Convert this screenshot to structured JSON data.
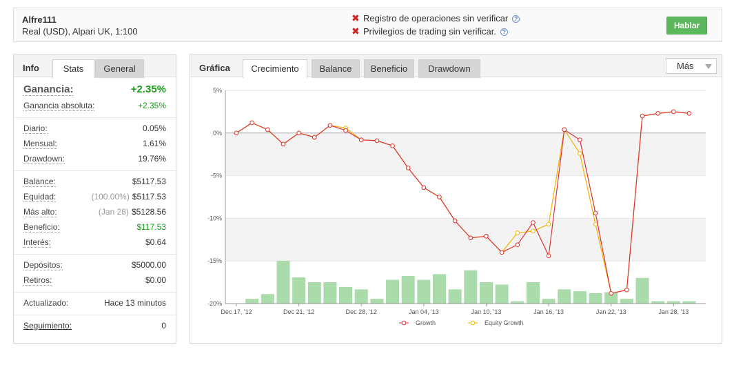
{
  "header": {
    "account_name": "Alfre111",
    "account_sub": "Real (USD), Alpari UK, 1:100",
    "warnings": [
      "Registro de operaciones sin verificar",
      "Privilegios de trading sin verificar."
    ],
    "help_glyph": "?",
    "talk_button": "Hablar"
  },
  "left_panel": {
    "title": "Info",
    "tabs": [
      "Stats",
      "General"
    ],
    "active_tab": "Stats",
    "gain": {
      "label": "Ganancia:",
      "value": "+2.35%"
    },
    "abs_gain": {
      "label": "Ganancia absoluta:",
      "value": "+2.35%"
    },
    "daily": {
      "label": "Diario:",
      "value": "0.05%"
    },
    "monthly": {
      "label": "Mensual:",
      "value": "1.61%"
    },
    "drawdown": {
      "label": "Drawdown:",
      "value": "19.76%"
    },
    "balance": {
      "label": "Balance:",
      "value": "$5117.53"
    },
    "equity": {
      "label": "Equidad:",
      "note": "(100.00%)",
      "value": "$5117.53"
    },
    "highest": {
      "label": "Más alto:",
      "note": "(Jan 28)",
      "value": "$5128.56"
    },
    "profit": {
      "label": "Beneficio:",
      "value": "$117.53"
    },
    "interest": {
      "label": "Interés:",
      "value": "$0.64"
    },
    "deposits": {
      "label": "Depósitos:",
      "value": "$5000.00"
    },
    "withdrawals": {
      "label": "Retiros:",
      "value": "$0.00"
    },
    "updated": {
      "label": "Actualizado:",
      "value": "Hace 13 minutos"
    },
    "tracking": {
      "label": "Seguimiento:",
      "value": "0"
    }
  },
  "right_panel": {
    "title": "Gráfica",
    "tabs": [
      "Crecimiento",
      "Balance",
      "Beneficio",
      "Drawdown"
    ],
    "active_tab": "Crecimiento",
    "more_button": "Más"
  },
  "chart_data": {
    "type": "line",
    "y_ticks": [
      "5%",
      "0%",
      "-5%",
      "-10%",
      "-15%",
      "-20%"
    ],
    "ylim": [
      -20,
      5
    ],
    "x_tick_labels": [
      "Dec 17, '12",
      "Dec 21, '12",
      "Dec 28, '12",
      "Jan 04, '13",
      "Jan 10, '13",
      "Jan 16, '13",
      "Jan 22, '13",
      "Jan 28, '13"
    ],
    "x_tick_index": [
      0,
      4,
      8,
      12,
      16,
      20,
      24,
      28
    ],
    "legend_position": "bottom",
    "colors": {
      "growth": "#dd3333",
      "equity": "#f0b400",
      "bars": "#a9dcaa",
      "band": "#f3f3f3"
    },
    "series": [
      {
        "name": "Growth",
        "values": [
          0,
          1.2,
          0.4,
          -1.3,
          0,
          -0.5,
          0.9,
          0.3,
          -0.8,
          -0.9,
          -1.5,
          -4.1,
          -6.4,
          -7.5,
          -10.3,
          -12.3,
          -12.1,
          -14,
          -13.1,
          -10.5,
          -14.4,
          0.4,
          -0.8,
          -9.4,
          -18.8,
          -18.4,
          2,
          2.3,
          2.5,
          2.3
        ]
      },
      {
        "name": "Equity Growth",
        "values": [
          0,
          1.2,
          0.4,
          -1.3,
          0,
          -0.5,
          0.9,
          0.6,
          -0.8,
          -0.9,
          -1.5,
          -4.1,
          -6.4,
          -7.5,
          -10.3,
          -12.3,
          -12.1,
          -14,
          -11.7,
          -11.5,
          -10.7,
          0.4,
          -2.4,
          -10.7,
          -18.8,
          -18.4,
          2,
          2.3,
          2.5,
          2.3
        ]
      }
    ],
    "volume_bars": [
      0,
      1,
      2,
      9,
      5.5,
      4.5,
      4.5,
      3.5,
      3,
      1,
      5,
      5.8,
      5,
      6.2,
      3,
      7,
      4.5,
      4,
      0.5,
      4.5,
      1,
      3,
      2.6,
      2.2,
      2.4,
      1,
      5.4,
      0.5,
      0.5,
      0.5
    ]
  }
}
